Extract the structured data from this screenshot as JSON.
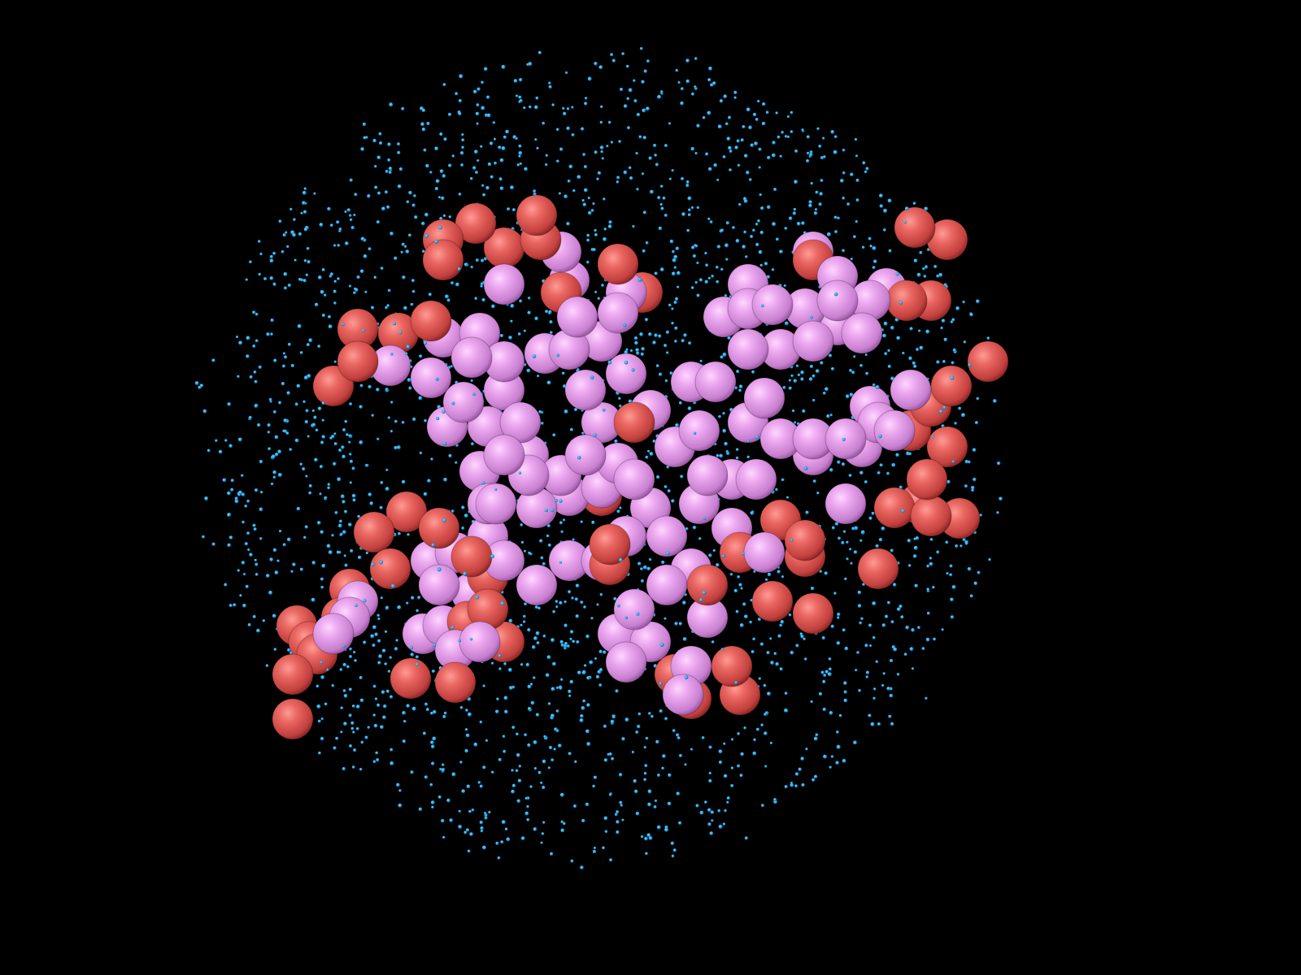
{
  "scene": {
    "background": "#000000",
    "description_visible": false,
    "colors": {
      "solvent_particle": "#1aa3e6",
      "polymer_bead_pink": "#e8a0e8",
      "polymer_bead_red": "#e06060",
      "highlight": "#ffffff"
    },
    "seed": 1234
  }
}
